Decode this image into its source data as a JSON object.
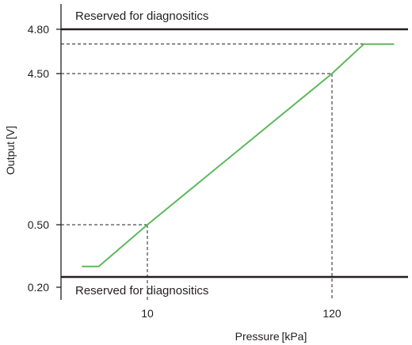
{
  "chart_data": {
    "type": "line",
    "xlabel": "Pressure [kPa]",
    "ylabel": "Output [V]",
    "x_ticks": [
      10,
      120
    ],
    "y_ticks": [
      0.2,
      0.5,
      4.5,
      4.8
    ],
    "y_tick_labels": [
      "0.20",
      "0.50",
      "4.50",
      "4.80"
    ],
    "bands": {
      "upper_label": "Reserved for diagnositics",
      "lower_label": "Reserved for diagnositics"
    },
    "series": [
      {
        "x": [
          -29,
          -19,
          10,
          120,
          139,
          157
        ],
        "y": [
          0.3,
          0.3,
          0.5,
          4.5,
          4.7,
          4.7
        ],
        "color": "#5cb85c"
      }
    ],
    "reference_points": [
      {
        "x": 10,
        "y": 0.5
      },
      {
        "x": 120,
        "y": 4.5
      }
    ],
    "upper_plateau_y": 4.7,
    "grid": false
  }
}
